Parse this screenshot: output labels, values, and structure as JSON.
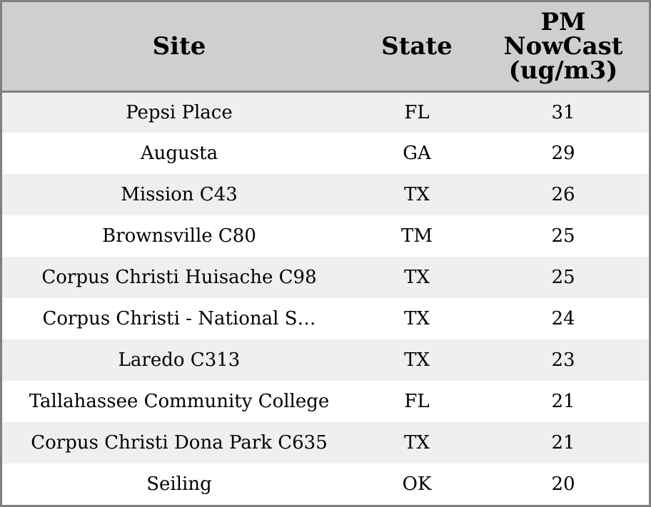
{
  "chart_data": {
    "type": "table",
    "columns": [
      "Site",
      "State",
      "PM NowCast (ug/m3)"
    ],
    "header_lines": {
      "site": "Site",
      "state": "State",
      "pm": [
        "PM",
        "NowCast",
        "(ug/m3)"
      ]
    },
    "rows": [
      {
        "site": "Pepsi Place",
        "state": "FL",
        "pm": 31
      },
      {
        "site": "Augusta",
        "state": "GA",
        "pm": 29
      },
      {
        "site": "Mission C43",
        "state": "TX",
        "pm": 26
      },
      {
        "site": "Brownsville C80",
        "state": "TM",
        "pm": 25
      },
      {
        "site": "Corpus Christi Huisache C98",
        "state": "TX",
        "pm": 25
      },
      {
        "site": "Corpus Christi - National S…",
        "state": "TX",
        "pm": 24
      },
      {
        "site": "Laredo C313",
        "state": "TX",
        "pm": 23
      },
      {
        "site": "Tallahassee Community College",
        "state": "FL",
        "pm": 21
      },
      {
        "site": "Corpus Christi Dona Park C635",
        "state": "TX",
        "pm": 21
      },
      {
        "site": "Seiling",
        "state": "OK",
        "pm": 20
      }
    ],
    "colors": {
      "header_bg": "#cfcfcf",
      "row_alt_bg": "#efefef",
      "row_bg": "#ffffff",
      "border": "#808080"
    }
  }
}
